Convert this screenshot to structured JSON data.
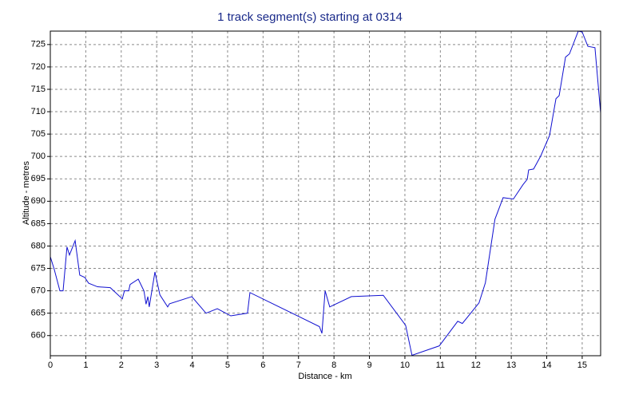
{
  "chart_data": {
    "type": "line",
    "title": "1 track segment(s) starting at 0314",
    "x_label": "Distance - km",
    "y_label": "Altitude - metres",
    "color": "#1010d0",
    "grid": true,
    "xlim": [
      0,
      15.52
    ],
    "ylim": [
      655.5,
      728
    ],
    "xticks": [
      0,
      1,
      2,
      3,
      4,
      5,
      6,
      7,
      8,
      9,
      10,
      11,
      12,
      13,
      14,
      15
    ],
    "yticks": [
      660,
      665,
      670,
      675,
      680,
      685,
      690,
      695,
      700,
      705,
      710,
      715,
      720,
      725
    ],
    "x": [
      0,
      0.11,
      0.27,
      0.36,
      0.47,
      0.54,
      0.7,
      0.83,
      0.97,
      1.08,
      1.33,
      1.69,
      2.03,
      2.09,
      2.21,
      2.25,
      2.48,
      2.64,
      2.7,
      2.75,
      2.79,
      2.95,
      3.09,
      3.31,
      3.36,
      3.99,
      4.39,
      4.71,
      5.09,
      5.56,
      5.63,
      7.59,
      7.66,
      7.75,
      7.88,
      8.49,
      9.39,
      10.02,
      10.2,
      10.97,
      11.49,
      11.62,
      12.09,
      12.27,
      12.54,
      12.77,
      13.06,
      13.33,
      13.45,
      13.49,
      13.63,
      13.83,
      14.08,
      14.26,
      14.35,
      14.53,
      14.64,
      14.89,
      15.0,
      15.16,
      15.36,
      15.52
    ],
    "values": [
      677.6,
      674.8,
      670,
      670,
      679.8,
      678,
      681.2,
      673.5,
      673,
      671.7,
      670.9,
      670.7,
      668.2,
      670,
      670,
      671.4,
      672.6,
      670,
      667,
      668.7,
      666.4,
      674.2,
      669.1,
      666.4,
      667.1,
      668.7,
      665,
      666,
      664.4,
      665,
      669.6,
      662,
      660.5,
      670,
      666.4,
      668.7,
      669,
      662.3,
      655.6,
      657.7,
      663.2,
      662.7,
      667.3,
      671.8,
      686,
      690.8,
      690.5,
      693.7,
      694.9,
      697,
      697.2,
      700.1,
      704.7,
      712.9,
      713.6,
      722.2,
      722.9,
      728,
      727.8,
      724.6,
      724.3,
      709.7
    ]
  }
}
